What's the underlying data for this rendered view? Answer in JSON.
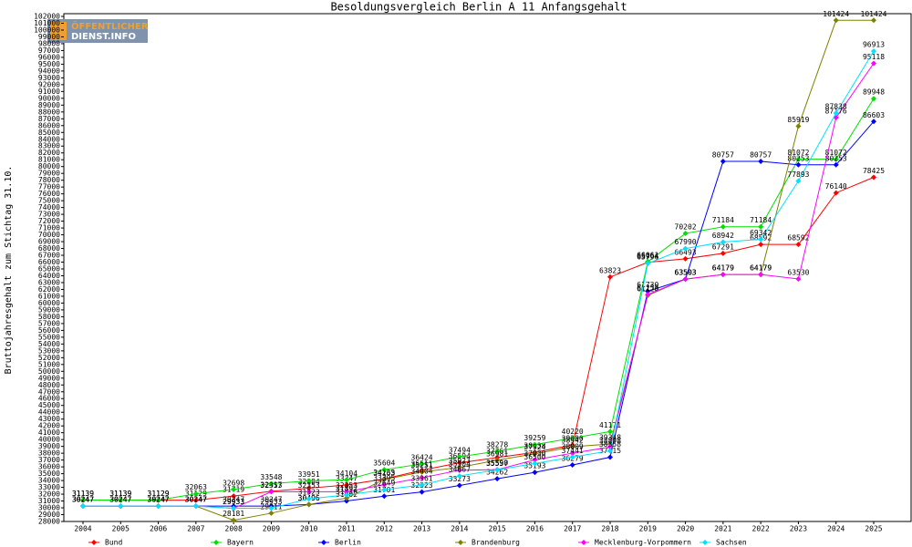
{
  "chart_data": {
    "type": "line",
    "title": "Besoldungsvergleich Berlin A 11 Anfangsgehalt",
    "ylabel": "Bruttojahresgehalt zum Stichtag 31.10.",
    "logo": [
      "ÖFFENTLICHER",
      "DIENST.INFO"
    ],
    "categories": [
      "2004",
      "2005",
      "2006",
      "2007",
      "2008",
      "2009",
      "2010",
      "2011",
      "2012",
      "2013",
      "2014",
      "2015",
      "2016",
      "2017",
      "2018",
      "2019",
      "2020",
      "2021",
      "2022",
      "2023",
      "2024",
      "2025"
    ],
    "ylim": [
      28000,
      102000
    ],
    "yticks": [
      28000,
      29000,
      30000,
      31000,
      32000,
      33000,
      34000,
      35000,
      36000,
      37000,
      38000,
      39000,
      40000,
      41000,
      42000,
      43000,
      44000,
      45000,
      46000,
      47000,
      48000,
      49000,
      50000,
      51000,
      52000,
      53000,
      54000,
      55000,
      56000,
      57000,
      58000,
      59000,
      60000,
      61000,
      62000,
      63000,
      64000,
      65000,
      66000,
      67000,
      68000,
      69000,
      70000,
      71000,
      72000,
      73000,
      74000,
      75000,
      76000,
      77000,
      78000,
      79000,
      80000,
      81000,
      82000,
      83000,
      84000,
      85000,
      86000,
      87000,
      88000,
      89000,
      90000,
      91000,
      92000,
      93000,
      94000,
      95000,
      96000,
      97000,
      98000,
      99000,
      100000,
      101000,
      102000
    ],
    "grid": false,
    "legend": "bottom",
    "series": [
      {
        "name": "Bund",
        "color": "#ff0000",
        "values": [
          31139,
          31139,
          31129,
          31129,
          31719,
          32417,
          32884,
          33347,
          34235,
          35511,
          36594,
          37361,
          38138,
          39200,
          63823,
          65964,
          66493,
          67291,
          68592,
          68592,
          76140,
          78425
        ]
      },
      {
        "name": "Bayern",
        "color": "#00e000",
        "values": [
          31139,
          31139,
          31129,
          32063,
          32698,
          33548,
          33951,
          34104,
          35604,
          36424,
          37494,
          38278,
          39259,
          40220,
          41171,
          66061,
          70202,
          71184,
          71184,
          81072,
          81072,
          89948
        ]
      },
      {
        "name": "Berlin",
        "color": "#0000ff",
        "values": [
          30247,
          30247,
          30247,
          30247,
          30247,
          30247,
          30496,
          31002,
          31701,
          32323,
          33273,
          34262,
          35193,
          36279,
          37415,
          61730,
          63503,
          80757,
          80757,
          80253,
          80253,
          86603
        ]
      },
      {
        "name": "Brandenburg",
        "color": "#808000",
        "values": [
          30247,
          30247,
          30247,
          30247,
          28181,
          29211,
          30496,
          31416,
          34163,
          35251,
          35923,
          36981,
          37924,
          38942,
          39348,
          61120,
          63503,
          64179,
          64179,
          85919,
          101424,
          101424
        ]
      },
      {
        "name": "Mecklenburg-Vorpommern",
        "color": "#ff00ff",
        "values": [
          30247,
          30247,
          30247,
          30247,
          29933,
          32353,
          32353,
          32353,
          33395,
          34404,
          35504,
          35590,
          37030,
          38009,
          38898,
          61253,
          63503,
          64179,
          64179,
          63530,
          87176,
          95118
        ]
      },
      {
        "name": "Sachsen",
        "color": "#00e0ff",
        "values": [
          30247,
          30247,
          30247,
          30247,
          29933,
          29933,
          31323,
          31892,
          32649,
          33361,
          34667,
          35557,
          36500,
          37441,
          38358,
          65796,
          67990,
          68942,
          69342,
          77893,
          87838,
          96913
        ]
      }
    ]
  }
}
